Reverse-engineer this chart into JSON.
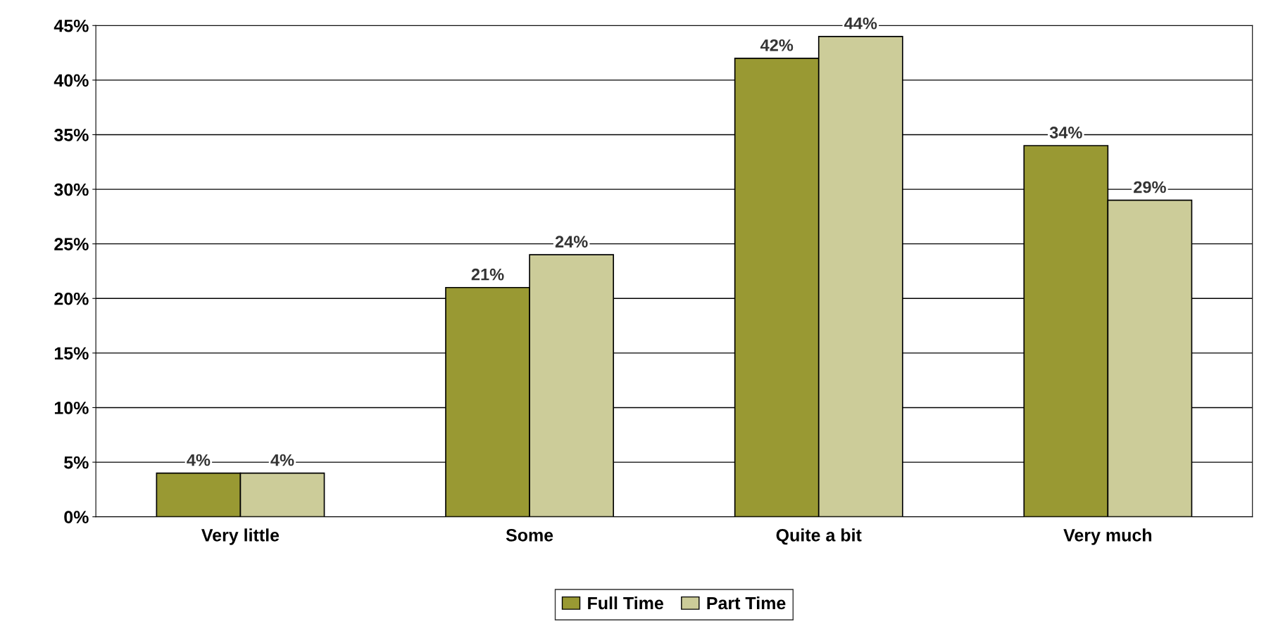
{
  "chart_data": {
    "type": "bar",
    "categories": [
      "Very little",
      "Some",
      "Quite a bit",
      "Very much"
    ],
    "series": [
      {
        "name": "Full Time",
        "color": "#999933",
        "values": [
          4,
          21,
          42,
          34
        ],
        "value_labels": [
          "4%",
          "21%",
          "42%",
          "34%"
        ]
      },
      {
        "name": "Part Time",
        "color": "#cccc99",
        "values": [
          4,
          24,
          44,
          29
        ],
        "value_labels": [
          "4%",
          "24%",
          "44%",
          "29%"
        ]
      }
    ],
    "ylim": [
      0,
      45
    ],
    "yticks": [
      {
        "value": 0,
        "label": "0%"
      },
      {
        "value": 5,
        "label": "5%"
      },
      {
        "value": 10,
        "label": "10%"
      },
      {
        "value": 15,
        "label": "15%"
      },
      {
        "value": 20,
        "label": "20%"
      },
      {
        "value": 25,
        "label": "25%"
      },
      {
        "value": 30,
        "label": "30%"
      },
      {
        "value": 35,
        "label": "35%"
      },
      {
        "value": 40,
        "label": "40%"
      },
      {
        "value": 45,
        "label": "45%"
      }
    ],
    "grid": "y",
    "legend": "bottom"
  }
}
